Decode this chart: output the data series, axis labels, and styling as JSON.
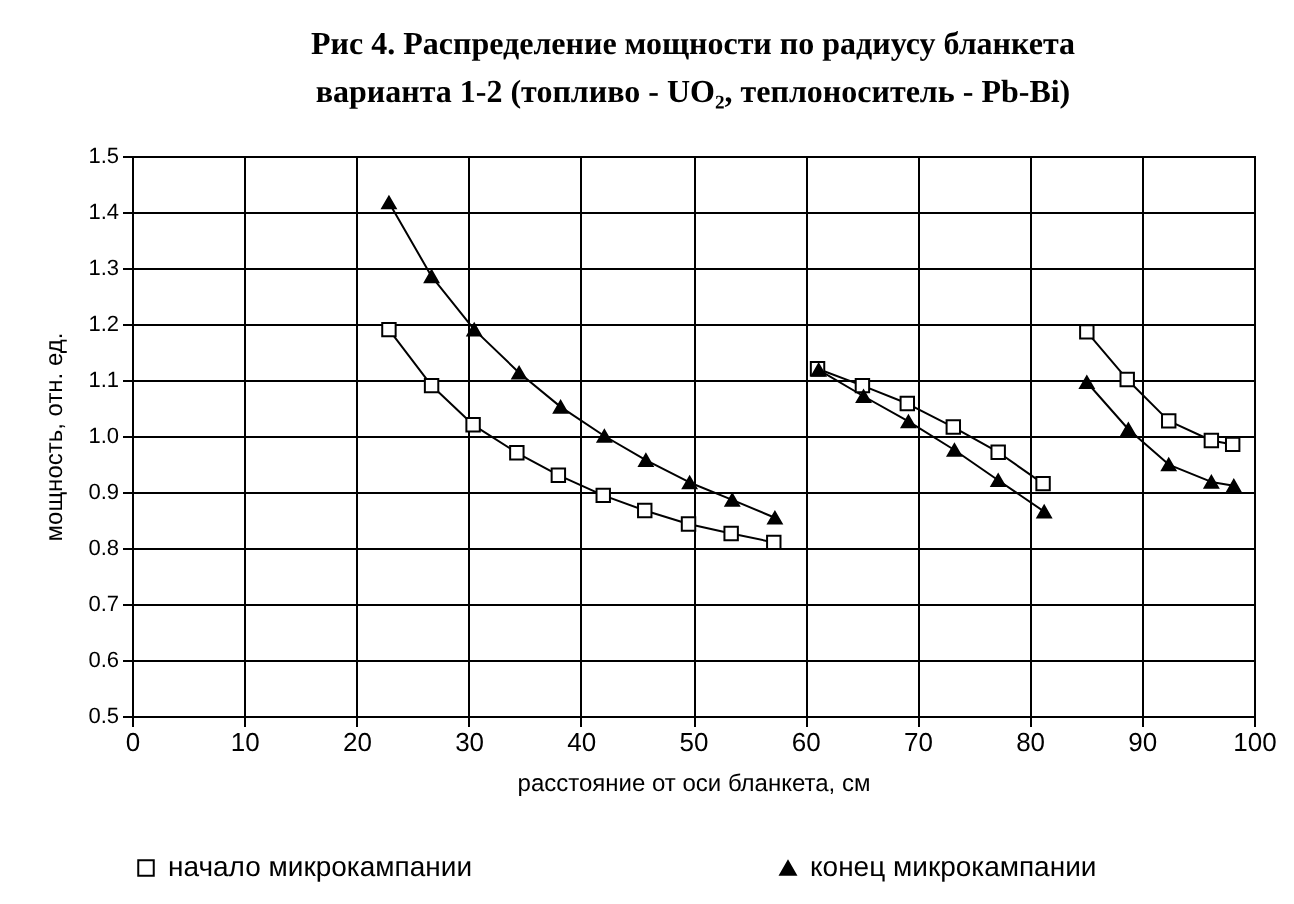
{
  "chart_data": {
    "type": "line",
    "title": "Рис 4. Распределение мощности по радиусу бланкета\nварианта 1-2 (топливо - UO₂, теплоноситель - Pb-Bi)",
    "xlabel": "расстояние от оси бланкета, см",
    "ylabel": "мощность, отн. ед.",
    "xlim": [
      0,
      100
    ],
    "xticks": [
      0,
      10,
      20,
      30,
      40,
      50,
      60,
      70,
      80,
      90,
      100
    ],
    "ylim": [
      0.5,
      1.5
    ],
    "yticks": [
      0.5,
      0.6,
      0.7,
      0.8,
      0.9,
      {
        "value": 1,
        "label": "1.0"
      },
      1.1,
      1.2,
      1.3,
      1.4,
      1.5
    ],
    "grid": true,
    "legend": "bottom",
    "series": [
      {
        "name": "начало микрокампании",
        "color": "#000000",
        "marker": "square",
        "x": [
          22.9,
          26.7,
          30.4,
          34.3,
          38.0,
          42.0,
          45.7,
          49.6,
          53.4,
          57.2,
          null,
          61.1,
          65.1,
          69.1,
          73.2,
          77.2,
          81.2,
          null,
          85.1,
          88.7,
          92.4,
          96.2,
          98.1
        ],
        "values": [
          1.19,
          1.09,
          1.02,
          0.97,
          0.93,
          0.894,
          0.867,
          0.843,
          0.826,
          0.81,
          null,
          1.12,
          1.09,
          1.058,
          1.016,
          0.971,
          0.915,
          null,
          1.186,
          1.101,
          1.027,
          0.992,
          0.985
        ]
      },
      {
        "name": "конец микрокампании",
        "color": "#000000",
        "marker": "triangle",
        "x": [
          22.9,
          26.7,
          30.5,
          34.5,
          38.2,
          42.1,
          45.8,
          49.7,
          53.5,
          57.3,
          null,
          61.2,
          65.2,
          69.2,
          73.3,
          77.2,
          81.3,
          null,
          85.1,
          88.8,
          92.4,
          96.2,
          98.2
        ],
        "values": [
          1.417,
          1.285,
          1.19,
          1.113,
          1.052,
          1.0,
          0.957,
          0.917,
          0.886,
          0.854,
          null,
          1.118,
          1.071,
          1.026,
          0.975,
          0.921,
          0.865,
          null,
          1.096,
          1.012,
          0.949,
          0.918,
          0.911
        ]
      }
    ]
  }
}
